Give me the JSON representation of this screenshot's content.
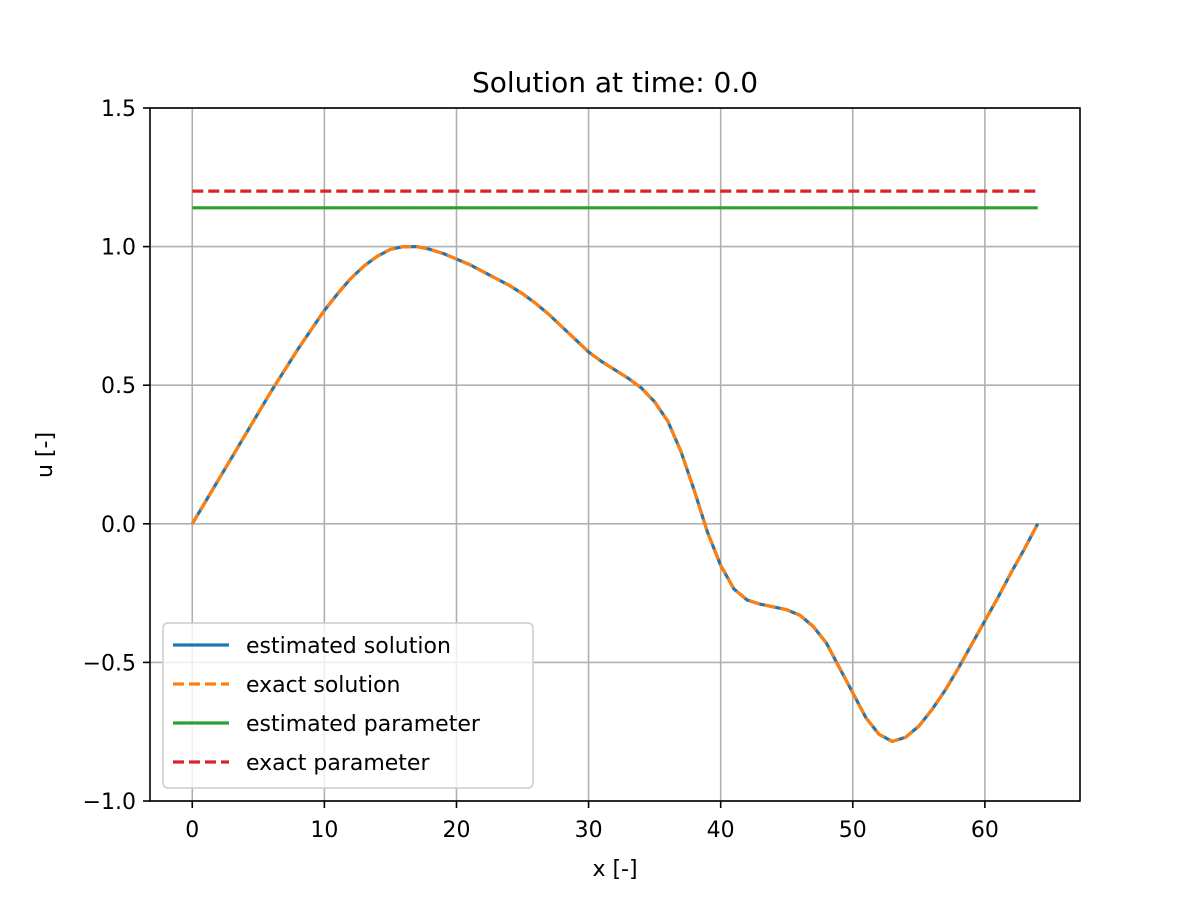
{
  "chart_data": {
    "type": "line",
    "title": "Solution at time: 0.0",
    "xlabel": "x [-]",
    "ylabel": "u [-]",
    "xlim": [
      -3.2,
      67.2
    ],
    "ylim": [
      -1.0,
      1.5
    ],
    "xticks": [
      0,
      10,
      20,
      30,
      40,
      50,
      60
    ],
    "yticks": [
      -1.0,
      -0.5,
      0.0,
      0.5,
      1.0,
      1.5
    ],
    "xtick_labels": [
      "0",
      "10",
      "20",
      "30",
      "40",
      "50",
      "60"
    ],
    "ytick_labels": [
      "−1.0",
      "−0.5",
      "0.0",
      "0.5",
      "1.0",
      "1.5"
    ],
    "grid": true,
    "legend_position": "lower-left",
    "series": [
      {
        "name": "estimated solution",
        "color": "#1f77b4",
        "style": "solid",
        "x": [
          0,
          1,
          2,
          3,
          4,
          5,
          6,
          7,
          8,
          9,
          10,
          11,
          12,
          13,
          14,
          15,
          16,
          17,
          18,
          19,
          20,
          21,
          22,
          23,
          24,
          25,
          26,
          27,
          28,
          29,
          30,
          31,
          32,
          33,
          34,
          35,
          36,
          37,
          38,
          39,
          40,
          41,
          42,
          43,
          44,
          45,
          46,
          47,
          48,
          49,
          50,
          51,
          52,
          53,
          54,
          55,
          56,
          57,
          58,
          59,
          60,
          61,
          62,
          63,
          64
        ],
        "y": [
          0.0,
          0.08,
          0.16,
          0.24,
          0.32,
          0.4,
          0.48,
          0.555,
          0.63,
          0.7,
          0.77,
          0.83,
          0.885,
          0.93,
          0.965,
          0.99,
          1.0,
          1.0,
          0.99,
          0.975,
          0.955,
          0.935,
          0.91,
          0.885,
          0.86,
          0.83,
          0.795,
          0.755,
          0.71,
          0.665,
          0.62,
          0.585,
          0.555,
          0.525,
          0.49,
          0.44,
          0.37,
          0.26,
          0.12,
          -0.03,
          -0.15,
          -0.235,
          -0.275,
          -0.29,
          -0.3,
          -0.31,
          -0.33,
          -0.37,
          -0.43,
          -0.52,
          -0.61,
          -0.7,
          -0.76,
          -0.785,
          -0.77,
          -0.73,
          -0.67,
          -0.6,
          -0.52,
          -0.435,
          -0.35,
          -0.265,
          -0.175,
          -0.09,
          0.0
        ]
      },
      {
        "name": "exact solution",
        "color": "#ff7f0e",
        "style": "dashed",
        "x": [
          0,
          1,
          2,
          3,
          4,
          5,
          6,
          7,
          8,
          9,
          10,
          11,
          12,
          13,
          14,
          15,
          16,
          17,
          18,
          19,
          20,
          21,
          22,
          23,
          24,
          25,
          26,
          27,
          28,
          29,
          30,
          31,
          32,
          33,
          34,
          35,
          36,
          37,
          38,
          39,
          40,
          41,
          42,
          43,
          44,
          45,
          46,
          47,
          48,
          49,
          50,
          51,
          52,
          53,
          54,
          55,
          56,
          57,
          58,
          59,
          60,
          61,
          62,
          63,
          64
        ],
        "y": [
          0.0,
          0.08,
          0.16,
          0.24,
          0.32,
          0.4,
          0.48,
          0.555,
          0.63,
          0.7,
          0.77,
          0.83,
          0.885,
          0.93,
          0.965,
          0.99,
          1.0,
          1.0,
          0.99,
          0.975,
          0.955,
          0.935,
          0.91,
          0.885,
          0.86,
          0.83,
          0.795,
          0.755,
          0.71,
          0.665,
          0.62,
          0.585,
          0.555,
          0.525,
          0.49,
          0.44,
          0.37,
          0.26,
          0.12,
          -0.03,
          -0.15,
          -0.235,
          -0.275,
          -0.29,
          -0.3,
          -0.31,
          -0.33,
          -0.37,
          -0.43,
          -0.52,
          -0.61,
          -0.7,
          -0.76,
          -0.785,
          -0.77,
          -0.73,
          -0.67,
          -0.6,
          -0.52,
          -0.435,
          -0.35,
          -0.265,
          -0.175,
          -0.09,
          0.0
        ]
      },
      {
        "name": "estimated parameter",
        "color": "#2ca02c",
        "style": "solid",
        "x": [
          0,
          64
        ],
        "y": [
          1.14,
          1.14
        ]
      },
      {
        "name": "exact parameter",
        "color": "#d62728",
        "style": "dashed",
        "x": [
          0,
          64
        ],
        "y": [
          1.2,
          1.2
        ]
      }
    ]
  }
}
